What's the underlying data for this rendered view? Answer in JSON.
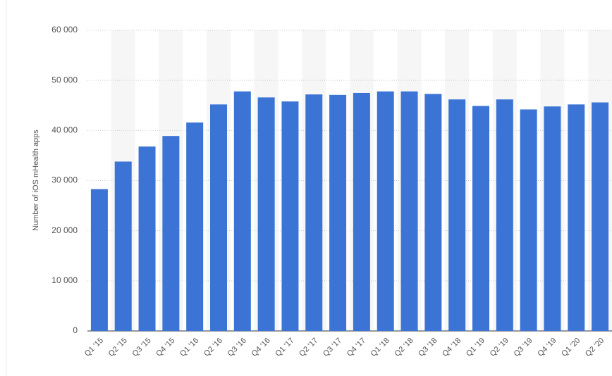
{
  "chart_data": {
    "type": "bar",
    "y_label": "Number of iOS mHealth apps",
    "categories": [
      "Q1 '15",
      "Q2 '15",
      "Q3 '15",
      "Q4 '15",
      "Q1 '16",
      "Q2 '16",
      "Q3 '16",
      "Q4 '16",
      "Q1 '17",
      "Q2 '17",
      "Q3 '17",
      "Q4 '17",
      "Q1 '18",
      "Q2 '18",
      "Q3 '18",
      "Q4 '18",
      "Q1 '19",
      "Q2 '19",
      "Q3 '19",
      "Q4 '19",
      "Q1 '20",
      "Q2 '20"
    ],
    "values": [
      28300,
      33800,
      36800,
      38900,
      41600,
      45200,
      47800,
      46600,
      45800,
      47200,
      47100,
      47500,
      47800,
      47800,
      47300,
      46200,
      44900,
      46200,
      44200,
      44800,
      45200,
      45600
    ],
    "color": "#3c74d6",
    "ylim": [
      0,
      60000
    ],
    "yticks": [
      0,
      {
        "value": 10000,
        "label": "10 000"
      },
      {
        "value": 20000,
        "label": "20 000"
      },
      {
        "value": 30000,
        "label": "30 000"
      },
      {
        "value": 40000,
        "label": "40 000"
      },
      {
        "value": 50000,
        "label": "50 000"
      },
      {
        "value": 60000,
        "label": "60 000"
      }
    ],
    "grid": true
  }
}
